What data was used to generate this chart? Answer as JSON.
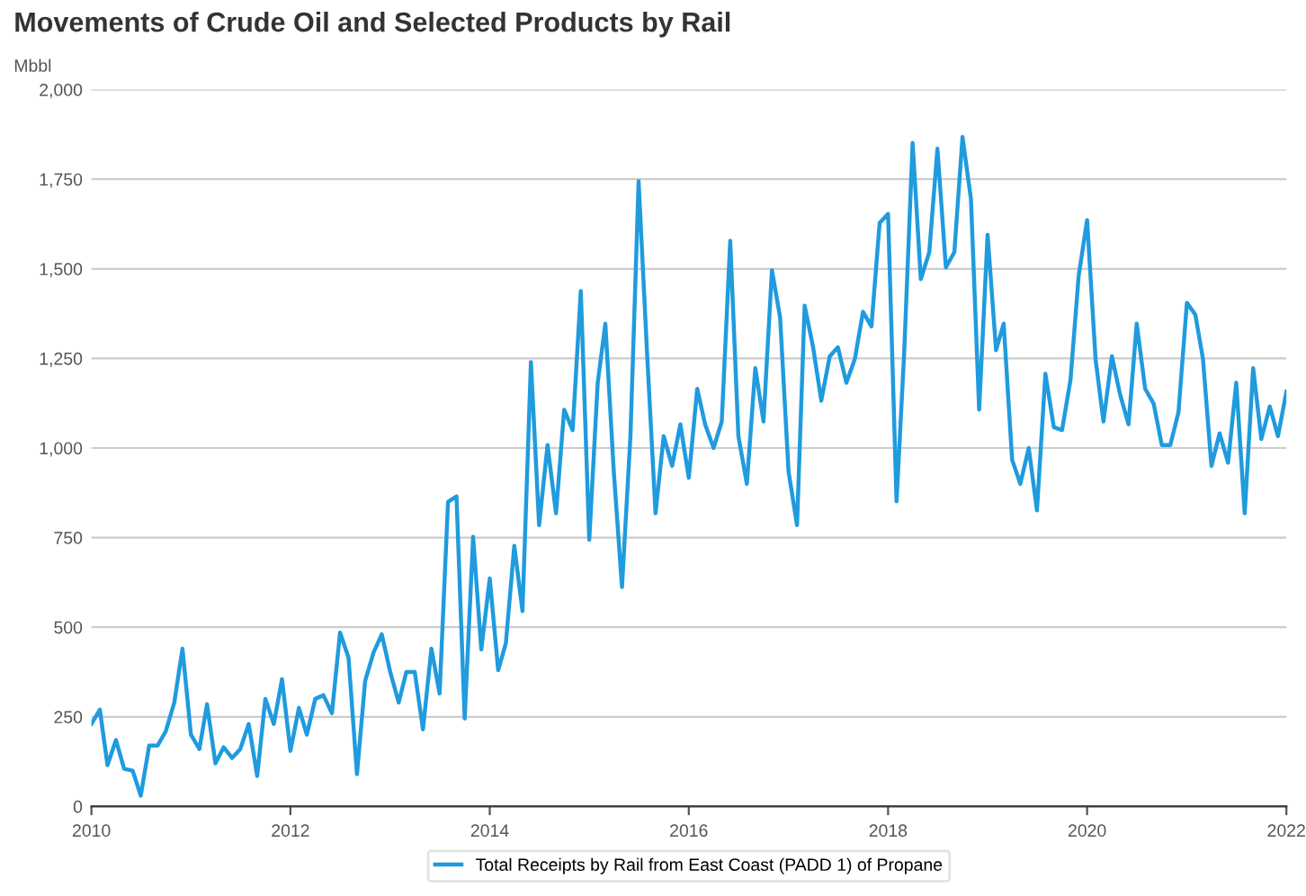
{
  "chart_data": {
    "type": "line",
    "title": "Movements of Crude Oil and Selected Products by Rail",
    "ylabel": "Mbbl",
    "x": [
      "2010-01",
      "2010-02",
      "2010-03",
      "2010-04",
      "2010-05",
      "2010-06",
      "2010-07",
      "2010-08",
      "2010-09",
      "2010-10",
      "2010-11",
      "2010-12",
      "2011-01",
      "2011-02",
      "2011-03",
      "2011-04",
      "2011-05",
      "2011-06",
      "2011-07",
      "2011-08",
      "2011-09",
      "2011-10",
      "2011-11",
      "2011-12",
      "2012-01",
      "2012-02",
      "2012-03",
      "2012-04",
      "2012-05",
      "2012-06",
      "2012-07",
      "2012-08",
      "2012-09",
      "2012-10",
      "2012-11",
      "2012-12",
      "2013-01",
      "2013-02",
      "2013-03",
      "2013-04",
      "2013-05",
      "2013-06",
      "2013-07",
      "2013-08",
      "2013-09",
      "2013-10",
      "2013-11",
      "2013-12",
      "2014-01",
      "2014-02",
      "2014-03",
      "2014-04",
      "2014-05",
      "2014-06",
      "2014-07",
      "2014-08",
      "2014-09",
      "2014-10",
      "2014-11",
      "2014-12",
      "2015-01",
      "2015-02",
      "2015-03",
      "2015-04",
      "2015-05",
      "2015-06",
      "2015-07",
      "2015-08",
      "2015-09",
      "2015-10",
      "2015-11",
      "2015-12",
      "2016-01",
      "2016-02",
      "2016-03",
      "2016-04",
      "2016-05",
      "2016-06",
      "2016-07",
      "2016-08",
      "2016-09",
      "2016-10",
      "2016-11",
      "2016-12",
      "2017-01",
      "2017-02",
      "2017-03",
      "2017-04",
      "2017-05",
      "2017-06",
      "2017-07",
      "2017-08",
      "2017-09",
      "2017-10",
      "2017-11",
      "2017-12",
      "2018-01",
      "2018-02",
      "2018-03",
      "2018-04",
      "2018-05",
      "2018-06",
      "2018-07",
      "2018-08",
      "2018-09",
      "2018-10",
      "2018-11",
      "2018-12",
      "2019-01",
      "2019-02",
      "2019-03",
      "2019-04",
      "2019-05",
      "2019-06",
      "2019-07",
      "2019-08",
      "2019-09",
      "2019-10",
      "2019-11",
      "2019-12",
      "2020-01",
      "2020-02",
      "2020-03",
      "2020-04",
      "2020-05",
      "2020-06",
      "2020-07",
      "2020-08",
      "2020-09",
      "2020-10",
      "2020-11",
      "2020-12",
      "2021-01",
      "2021-02",
      "2021-03",
      "2021-04",
      "2021-05",
      "2021-06",
      "2021-07",
      "2021-08",
      "2021-09",
      "2021-10",
      "2021-11",
      "2021-12",
      "2022-01"
    ],
    "series": [
      {
        "name": "Total Receipts by Rail from East Coast (PADD 1) of Propane",
        "color": "#1f9bde",
        "values": [
          230,
          270,
          115,
          185,
          105,
          100,
          30,
          170,
          170,
          210,
          290,
          440,
          200,
          160,
          285,
          120,
          165,
          135,
          160,
          230,
          85,
          300,
          230,
          355,
          155,
          275,
          200,
          300,
          310,
          260,
          485,
          415,
          90,
          350,
          430,
          480,
          375,
          290,
          375,
          375,
          215,
          440,
          315,
          850,
          865,
          245,
          752,
          438,
          636,
          380,
          455,
          727,
          545,
          1240,
          785,
          1008,
          818,
          1107,
          1050,
          1438,
          744,
          1182,
          1347,
          934,
          612,
          1033,
          1744,
          1265,
          818,
          1033,
          950,
          1066,
          917,
          1165,
          1066,
          1000,
          1074,
          1578,
          1033,
          900,
          1223,
          1074,
          1496,
          1364,
          934,
          785,
          1397,
          1281,
          1132,
          1256,
          1281,
          1182,
          1248,
          1380,
          1339,
          1628,
          1653,
          851,
          1265,
          1851,
          1471,
          1546,
          1835,
          1504,
          1546,
          1868,
          1694,
          1107,
          1595,
          1273,
          1347,
          967,
          900,
          1000,
          826,
          1207,
          1058,
          1050,
          1190,
          1480,
          1636,
          1248,
          1074,
          1256,
          1149,
          1066,
          1347,
          1165,
          1124,
          1008,
          1008,
          1099,
          1405,
          1372,
          1248,
          950,
          1041,
          959,
          1182,
          818,
          1223,
          1025,
          1116,
          1033,
          1157
        ]
      }
    ],
    "xlim": [
      "2010-01",
      "2022-01"
    ],
    "xticks": [
      "2010",
      "2012",
      "2014",
      "2016",
      "2018",
      "2020",
      "2022"
    ],
    "ylim": [
      0,
      2000
    ],
    "yticks": [
      0,
      {
        "value": 250,
        "label": "250"
      },
      {
        "value": 500,
        "label": "500"
      },
      {
        "value": 750,
        "label": "750"
      },
      {
        "value": 1000,
        "label": "1,000"
      },
      {
        "value": 1250,
        "label": "1,250"
      },
      {
        "value": 1500,
        "label": "1,500"
      },
      {
        "value": 1750,
        "label": "1,750"
      },
      {
        "value": 2000,
        "label": "2,000"
      }
    ],
    "grid": "y",
    "legend": "bottom",
    "marker": "none",
    "line_style": "solid"
  }
}
